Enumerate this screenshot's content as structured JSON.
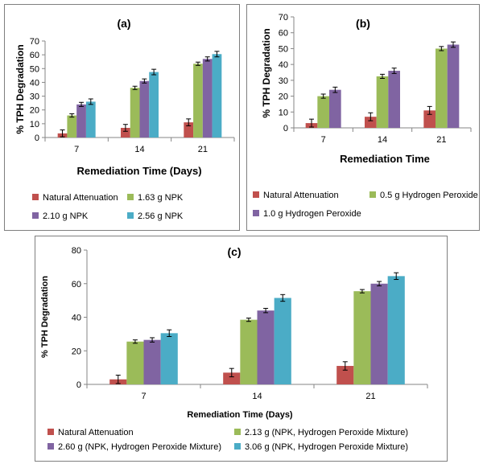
{
  "colors": {
    "series": [
      "#c0504d",
      "#9bbb59",
      "#8064a2",
      "#4bacc6"
    ],
    "axis": "#868686",
    "border": "#7f7f7f"
  },
  "chart_data": [
    {
      "panel": "a",
      "type": "bar",
      "title": "(a)",
      "xlabel": "Remediation Time (Days)",
      "ylabel": "% TPH Degradation",
      "categories": [
        "7",
        "14",
        "21"
      ],
      "ylim": [
        0,
        70
      ],
      "yticks": [
        0,
        10,
        20,
        30,
        40,
        50,
        60,
        70
      ],
      "grid": false,
      "error_bars": true,
      "legend_position": "bottom",
      "series": [
        {
          "name": "Natural Attenuation",
          "values": [
            3,
            7,
            11
          ],
          "errors": [
            2.5,
            2.5,
            2.5
          ]
        },
        {
          "name": "1.63 g NPK",
          "values": [
            16,
            36,
            53.5
          ],
          "errors": [
            1.2,
            1.2,
            1.2
          ]
        },
        {
          "name": "2.10 g NPK",
          "values": [
            24,
            41,
            57
          ],
          "errors": [
            1.5,
            1.5,
            1.5
          ]
        },
        {
          "name": "2.56 g NPK",
          "values": [
            26,
            47.5,
            60.5
          ],
          "errors": [
            2,
            2,
            2
          ]
        }
      ]
    },
    {
      "panel": "b",
      "type": "bar",
      "title": "(b)",
      "xlabel": "Remediation Time",
      "ylabel": "% TPH Degradation",
      "categories": [
        "7",
        "14",
        "21"
      ],
      "ylim": [
        0,
        70
      ],
      "yticks": [
        0,
        10,
        20,
        30,
        40,
        50,
        60,
        70
      ],
      "grid": false,
      "error_bars": true,
      "legend_position": "bottom",
      "series": [
        {
          "name": "Natural Attenuation",
          "values": [
            3,
            7,
            11
          ],
          "errors": [
            2.5,
            2.5,
            2.5
          ]
        },
        {
          "name": "0.5 g Hydrogen Peroxide",
          "values": [
            20,
            32.5,
            50
          ],
          "errors": [
            1.3,
            1.3,
            1.3
          ]
        },
        {
          "name": "1.0 g Hydrogen Peroxide",
          "values": [
            24,
            36,
            52.5
          ],
          "errors": [
            1.7,
            1.7,
            1.7
          ]
        }
      ]
    },
    {
      "panel": "c",
      "type": "bar",
      "title": "(c)",
      "xlabel": "Remediation Time (Days)",
      "ylabel": "% TPH Degradation",
      "categories": [
        "7",
        "14",
        "21"
      ],
      "ylim": [
        0,
        80
      ],
      "yticks": [
        0,
        20,
        40,
        60,
        80
      ],
      "grid": false,
      "error_bars": true,
      "legend_position": "bottom",
      "series": [
        {
          "name": "Natural Attenuation",
          "values": [
            3,
            7,
            11
          ],
          "errors": [
            2.5,
            2.5,
            2.5
          ]
        },
        {
          "name": "2.13 g (NPK, Hydrogen Peroxide Mixture)",
          "values": [
            25.5,
            38.5,
            55.5
          ],
          "errors": [
            1,
            1,
            1
          ]
        },
        {
          "name": "2.60 g (NPK, Hydrogen Peroxide Mixture)",
          "values": [
            26.5,
            44,
            60
          ],
          "errors": [
            1.3,
            1.3,
            1.3
          ]
        },
        {
          "name": "3.06 g (NPK, Hydrogen Peroxide Mixture)",
          "values": [
            30.5,
            51.5,
            64.5
          ],
          "errors": [
            2,
            2,
            2
          ]
        }
      ]
    }
  ]
}
